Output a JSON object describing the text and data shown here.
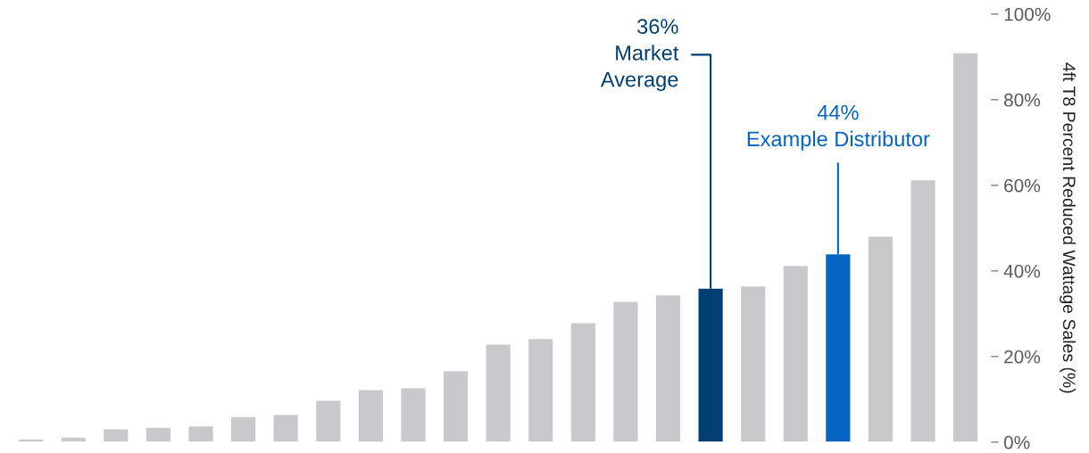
{
  "chart_data": {
    "type": "bar",
    "categories": [
      null,
      null,
      null,
      null,
      null,
      null,
      null,
      null,
      null,
      null,
      null,
      null,
      null,
      null,
      null,
      null,
      null,
      null,
      null,
      null,
      null,
      null,
      null
    ],
    "values": [
      0.8,
      1.2,
      3.1,
      3.5,
      3.8,
      6,
      6.5,
      9.8,
      12.3,
      12.7,
      16.7,
      22.9,
      24.2,
      27.9,
      32.9,
      34.4,
      36,
      36.5,
      41.3,
      44,
      48.1,
      61.3,
      91
    ],
    "colors": [
      "#c8c9cb",
      "#c8c9cb",
      "#c8c9cb",
      "#c8c9cb",
      "#c8c9cb",
      "#c8c9cb",
      "#c8c9cb",
      "#c8c9cb",
      "#c8c9cb",
      "#c8c9cb",
      "#c8c9cb",
      "#c8c9cb",
      "#c8c9cb",
      "#c8c9cb",
      "#c8c9cb",
      "#c8c9cb",
      "#003f72",
      "#c8c9cb",
      "#c8c9cb",
      "#0563c1",
      "#c8c9cb",
      "#c8c9cb",
      "#c8c9cb"
    ],
    "ylabel": "4ft T8 Percent Reduced Wattage Sales (%)",
    "ylim": [
      0,
      100
    ],
    "yticks": [
      {
        "value": 0,
        "label": "0%"
      },
      {
        "value": 20,
        "label": "20%"
      },
      {
        "value": 40,
        "label": "40%"
      },
      {
        "value": 60,
        "label": "60%"
      },
      {
        "value": 80,
        "label": "80%"
      },
      {
        "value": 100,
        "label": "100%"
      }
    ],
    "annotations": [
      "36%\nMarket\nAverage",
      "44%\nExample Distributor"
    ],
    "grid": false,
    "legend": false
  }
}
